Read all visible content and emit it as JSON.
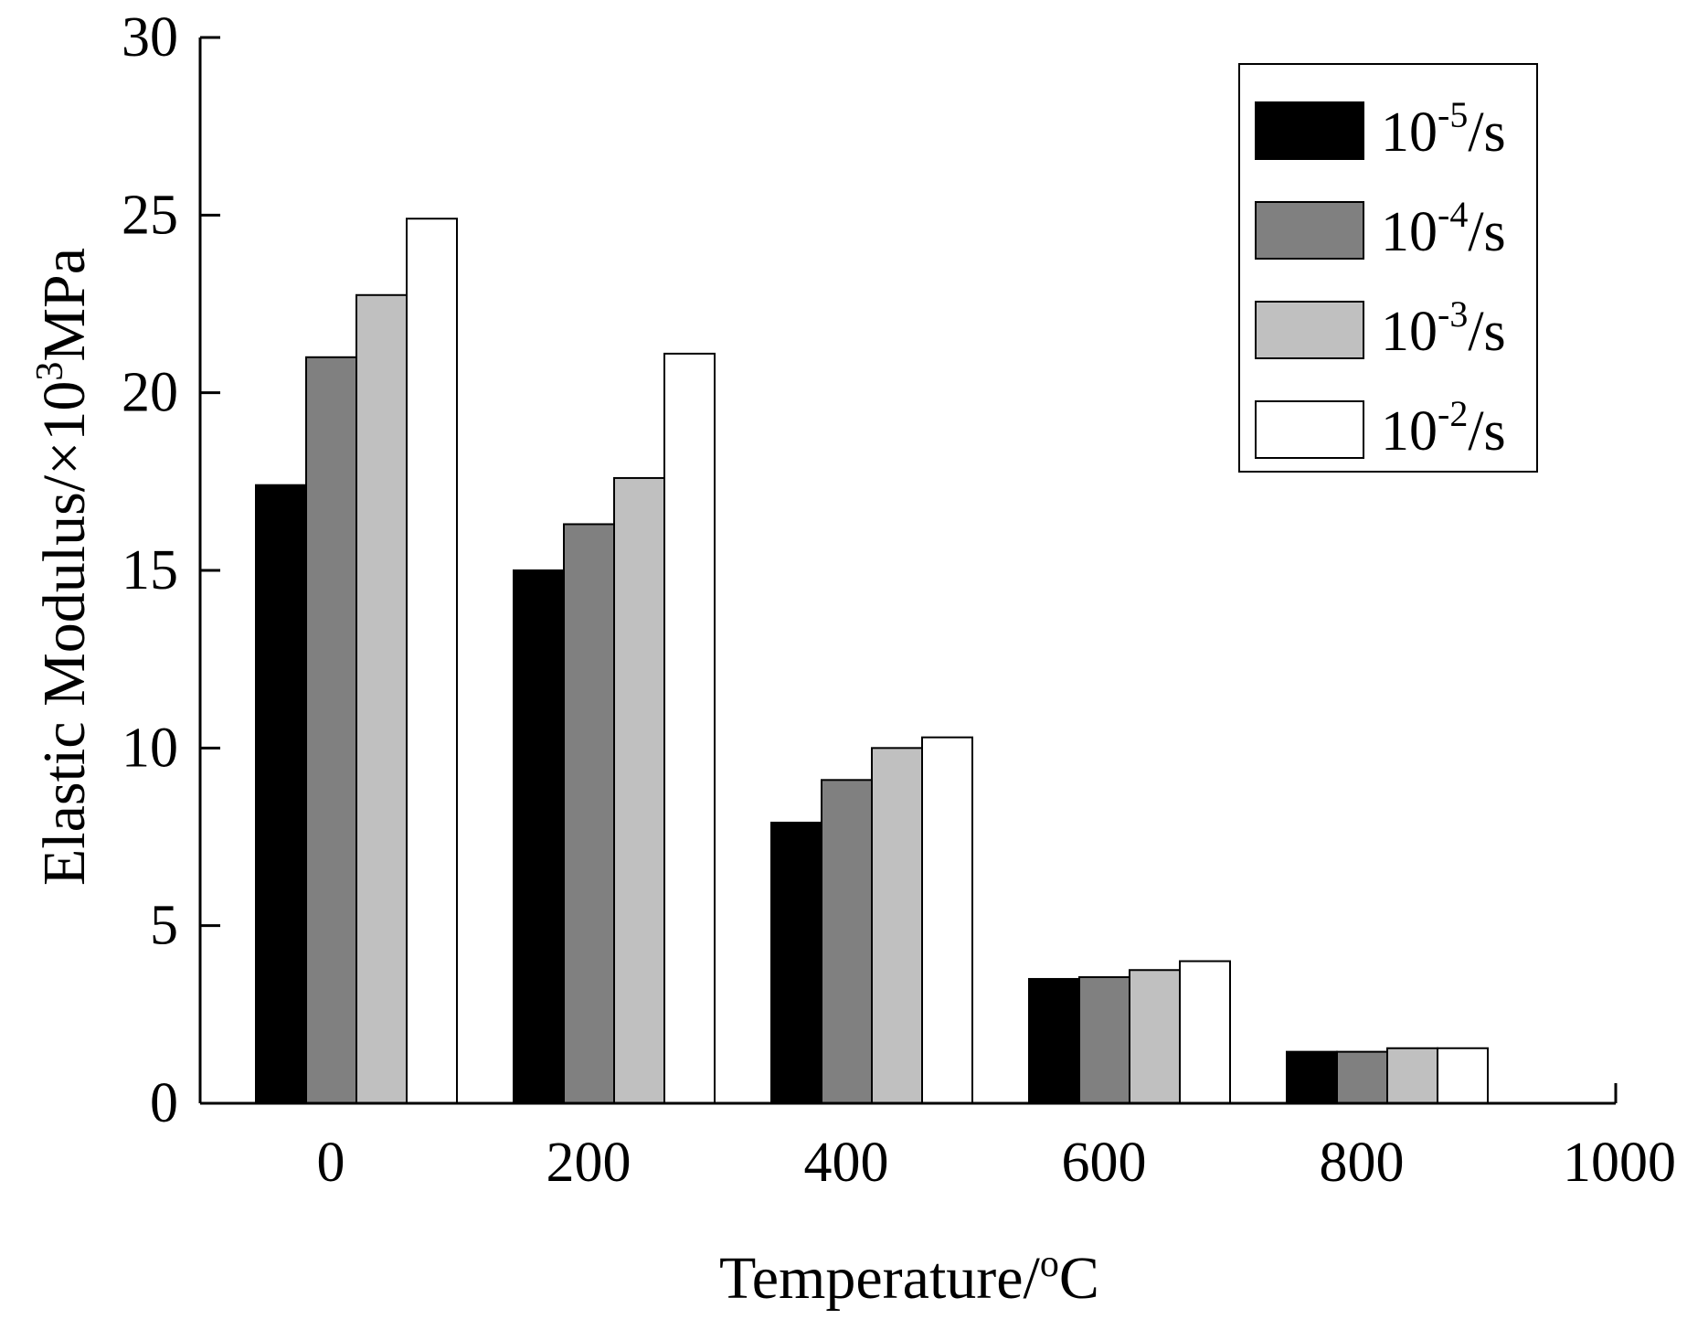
{
  "chart_data": {
    "type": "bar",
    "title": "",
    "xlabel": "Temperature/",
    "xlabel_sup": "o",
    "xlabel_unit": "C",
    "ylabel": "Elastic Modulus/×10",
    "ylabel_sup": "3",
    "ylabel_unit": "MPa",
    "categories": [
      "0",
      "200",
      "400",
      "600",
      "800"
    ],
    "x_ticks": [
      "0",
      "200",
      "400",
      "600",
      "800",
      "1000"
    ],
    "ylim": [
      0,
      30
    ],
    "y_ticks": [
      "0",
      "5",
      "10",
      "15",
      "20",
      "25",
      "30"
    ],
    "legend_position": "top-right",
    "series": [
      {
        "name": "10-5/s",
        "base": "10",
        "exp": "-5",
        "unit": "/s",
        "color": "#000000",
        "values": [
          17.4,
          15.0,
          7.9,
          3.5,
          1.45
        ]
      },
      {
        "name": "10-4/s",
        "base": "10",
        "exp": "-4",
        "unit": "/s",
        "color": "#808080",
        "values": [
          21.0,
          16.3,
          9.1,
          3.55,
          1.45
        ]
      },
      {
        "name": "10-3/s",
        "base": "10",
        "exp": "-3",
        "unit": "/s",
        "color": "#c0c0c0",
        "values": [
          22.75,
          17.6,
          10.0,
          3.75,
          1.55
        ]
      },
      {
        "name": "10-2/s",
        "base": "10",
        "exp": "-2",
        "unit": "/s",
        "color": "#ffffff",
        "values": [
          24.9,
          21.1,
          10.3,
          4.0,
          1.55
        ]
      }
    ]
  }
}
